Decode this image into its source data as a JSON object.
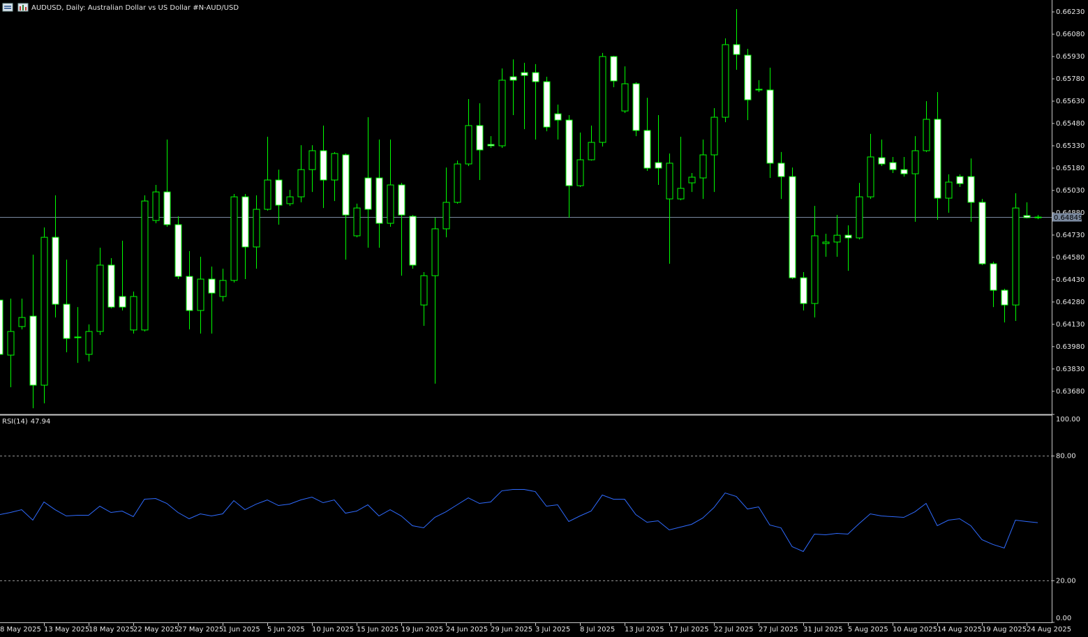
{
  "chart_data": [
    {
      "type": "candlestick",
      "title": "AUDUSD, Daily:  Australian Dollar vs US Dollar #N-AUD/USD",
      "categories": [
        "8 May 2025",
        null,
        null,
        null,
        "13 May 2025",
        null,
        null,
        null,
        "18 May 2025",
        null,
        null,
        null,
        "22 May 2025",
        null,
        null,
        null,
        "27 May 2025",
        null,
        null,
        null,
        "1 Jun 2025",
        null,
        null,
        null,
        "5 Jun 2025",
        null,
        null,
        null,
        "10 Jun 2025",
        null,
        null,
        null,
        "15 Jun 2025",
        null,
        null,
        null,
        "19 Jun 2025",
        null,
        null,
        null,
        "24 Jun 2025",
        null,
        null,
        null,
        "29 Jun 2025",
        null,
        null,
        null,
        "3 Jul 2025",
        null,
        null,
        null,
        "8 Jul 2025",
        null,
        null,
        null,
        "13 Jul 2025",
        null,
        null,
        null,
        "17 Jul 2025",
        null,
        null,
        null,
        "22 Jul 2025",
        null,
        null,
        null,
        "27 Jul 2025",
        null,
        null,
        null,
        "31 Jul 2025",
        null,
        null,
        null,
        "5 Aug 2025",
        null,
        null,
        null,
        "10 Aug 2025",
        null,
        null,
        null,
        "14 Aug 2025",
        null,
        null,
        null,
        "19 Aug 2025",
        null,
        null,
        null,
        "24 Aug 2025",
        null
      ],
      "open": [
        0.64293,
        0.63923,
        0.64115,
        0.64185,
        0.63721,
        0.64715,
        0.64265,
        0.64045,
        0.63928,
        0.64082,
        0.64528,
        0.64317,
        0.64092,
        0.64092,
        0.64828,
        0.6502,
        0.648,
        0.64452,
        0.64223,
        0.64434,
        0.64317,
        0.64425,
        0.64987,
        0.6465,
        0.64903,
        0.651,
        0.64941,
        0.64987,
        0.6517,
        0.65297,
        0.651,
        0.65269,
        0.64725,
        0.65114,
        0.65114,
        0.64809,
        0.65067,
        0.64856,
        0.6426,
        0.64457,
        0.64772,
        0.6495,
        0.65208,
        0.65466,
        0.65339,
        0.6533,
        0.65794,
        0.65822,
        0.65822,
        0.65761,
        0.65545,
        0.65503,
        0.65062,
        0.65236,
        0.65353,
        0.6593,
        0.65564,
        0.65747,
        0.65433,
        0.65217,
        0.64973,
        0.64973,
        0.65081,
        0.65114,
        0.65269,
        0.65522,
        0.6601,
        0.65939,
        0.6571,
        0.65705,
        0.65213,
        0.65123,
        0.64443,
        0.6427,
        0.64673,
        0.64683,
        0.64729,
        0.64711,
        0.64987,
        0.6525,
        0.65217,
        0.6517,
        0.65142,
        0.65297,
        0.65508,
        0.64978,
        0.65123,
        0.65123,
        0.6495,
        0.64537,
        0.64359,
        0.6426,
        0.64861,
        0.64851
      ],
      "high": [
        0.64317,
        0.64303,
        0.64303,
        0.64598,
        0.64781,
        0.64997,
        0.64565,
        0.64246,
        0.64129,
        0.64645,
        0.64575,
        0.64692,
        0.6435,
        0.64997,
        0.65067,
        0.65372,
        0.64856,
        0.64622,
        0.64584,
        0.64518,
        0.64504,
        0.65006,
        0.65006,
        0.64997,
        0.65391,
        0.6517,
        0.65034,
        0.65334,
        0.65334,
        0.65466,
        0.65288,
        0.65278,
        0.64941,
        0.65522,
        0.65372,
        0.65372,
        0.65081,
        0.64865,
        0.64481,
        0.64847,
        0.65184,
        0.65231,
        0.65644,
        0.65616,
        0.65395,
        0.6585,
        0.65911,
        0.65888,
        0.65879,
        0.65794,
        0.65607,
        0.65536,
        0.65419,
        0.65466,
        0.65954,
        0.65935,
        0.65864,
        0.65757,
        0.65653,
        0.65536,
        0.65278,
        0.65391,
        0.65147,
        0.65372,
        0.65583,
        0.66052,
        0.66249,
        0.65982,
        0.65771,
        0.65855,
        0.65288,
        0.65184,
        0.64481,
        0.64926,
        0.64739,
        0.64865,
        0.64795,
        0.65081,
        0.6541,
        0.65372,
        0.65255,
        0.65255,
        0.65395,
        0.6563,
        0.65691,
        0.65138,
        0.65138,
        0.65245,
        0.64973,
        0.64551,
        0.64369,
        0.65011,
        0.6495,
        0.64865
      ],
      "low": [
        0.63909,
        0.63707,
        0.64096,
        0.63566,
        0.63599,
        0.64176,
        0.63942,
        0.63871,
        0.63881,
        0.64059,
        0.64237,
        0.64223,
        0.64068,
        0.64082,
        0.64809,
        0.64786,
        0.64434,
        0.64096,
        0.64068,
        0.64068,
        0.64284,
        0.64411,
        0.64434,
        0.64504,
        0.64894,
        0.648,
        0.64926,
        0.6495,
        0.6502,
        0.64912,
        0.64959,
        0.64565,
        0.64715,
        0.64645,
        0.64645,
        0.64786,
        0.64457,
        0.64504,
        0.6412,
        0.63731,
        0.64715,
        0.64941,
        0.65194,
        0.651,
        0.65316,
        0.65316,
        0.65536,
        0.65442,
        0.65372,
        0.65428,
        0.65372,
        0.64847,
        0.65053,
        0.65231,
        0.65325,
        0.65724,
        0.6555,
        0.65395,
        0.65161,
        0.65067,
        0.64537,
        0.64964,
        0.6502,
        0.64973,
        0.6502,
        0.65489,
        0.65841,
        0.65503,
        0.65691,
        0.65114,
        0.64973,
        0.64434,
        0.64223,
        0.64176,
        0.64584,
        0.64584,
        0.6449,
        0.64701,
        0.64973,
        0.65194,
        0.65147,
        0.65123,
        0.64819,
        0.65288,
        0.64833,
        0.6488,
        0.65053,
        0.64819,
        0.64528,
        0.64246,
        0.64143,
        0.64153,
        0.64842,
        0.64837
      ],
      "close": [
        0.63928,
        0.64082,
        0.64176,
        0.63721,
        0.64715,
        0.64265,
        0.64035,
        0.6404,
        0.64082,
        0.64528,
        0.64246,
        0.64246,
        0.64317,
        0.64959,
        0.6502,
        0.648,
        0.64452,
        0.64223,
        0.64434,
        0.6434,
        0.64425,
        0.64987,
        0.6465,
        0.64903,
        0.651,
        0.64931,
        0.64987,
        0.6517,
        0.65297,
        0.651,
        0.65278,
        0.64865,
        0.64912,
        0.64903,
        0.64809,
        0.65067,
        0.64865,
        0.64528,
        0.64457,
        0.64772,
        0.6495,
        0.65208,
        0.65466,
        0.65302,
        0.6533,
        0.65771,
        0.65771,
        0.65803,
        0.65761,
        0.65456,
        0.65503,
        0.65062,
        0.65236,
        0.65353,
        0.6593,
        0.65766,
        0.65747,
        0.65433,
        0.6518,
        0.6518,
        0.65213,
        0.65044,
        0.65119,
        0.65269,
        0.65522,
        0.6601,
        0.65944,
        0.65639,
        0.65705,
        0.65213,
        0.65123,
        0.64443,
        0.6427,
        0.64725,
        0.64683,
        0.64729,
        0.64711,
        0.64987,
        0.65255,
        0.65208,
        0.6517,
        0.65142,
        0.65297,
        0.65508,
        0.64978,
        0.65086,
        0.65076,
        0.6495,
        0.64537,
        0.64359,
        0.6426,
        0.64912,
        0.64847,
        0.64849
      ],
      "color": "#00ff00",
      "up_fill": "#000000",
      "down_fill": "#ffffff",
      "last_price": 0.64849,
      "last_price_color": "#7b8aa0",
      "ylim": [
        0.63529,
        0.6631
      ],
      "yticks": [
        {
          "value": 0.6623,
          "label": "0.66230"
        },
        {
          "value": 0.6608,
          "label": "0.66080"
        },
        {
          "value": 0.6593,
          "label": "0.65930"
        },
        {
          "value": 0.6578,
          "label": "0.65780"
        },
        {
          "value": 0.6563,
          "label": "0.65630"
        },
        {
          "value": 0.6548,
          "label": "0.65480"
        },
        {
          "value": 0.6533,
          "label": "0.65330"
        },
        {
          "value": 0.6518,
          "label": "0.65180"
        },
        {
          "value": 0.6503,
          "label": "0.65030"
        },
        {
          "value": 0.6488,
          "label": "0.64880"
        },
        {
          "value": 0.6473,
          "label": "0.64730"
        },
        {
          "value": 0.6458,
          "label": "0.64580"
        },
        {
          "value": 0.6443,
          "label": "0.64430"
        },
        {
          "value": 0.6428,
          "label": "0.64280"
        },
        {
          "value": 0.6413,
          "label": "0.64130"
        },
        {
          "value": 0.6398,
          "label": "0.63980"
        },
        {
          "value": 0.6383,
          "label": "0.63830"
        },
        {
          "value": 0.6368,
          "label": "0.63680"
        }
      ]
    },
    {
      "type": "line",
      "title": "RSI(14)",
      "series": [
        {
          "color": "#2f6bff",
          "values": [
            51.84,
            52.85,
            54.19,
            49.16,
            57.88,
            54.19,
            51.17,
            51.51,
            51.51,
            55.87,
            52.85,
            53.52,
            50.84,
            59.22,
            59.55,
            57.21,
            52.85,
            49.83,
            52.18,
            51.17,
            52.18,
            58.55,
            54.19,
            56.87,
            58.88,
            56.2,
            56.87,
            58.88,
            60.22,
            57.54,
            58.88,
            52.51,
            53.52,
            56.54,
            51.17,
            54.19,
            51.17,
            46.48,
            45.47,
            50.5,
            53.18,
            56.54,
            59.89,
            57.21,
            57.88,
            63.24,
            63.91,
            63.91,
            62.9,
            55.87,
            56.54,
            48.49,
            51.17,
            53.52,
            61.23,
            59.22,
            59.22,
            51.84,
            48.16,
            48.83,
            44.47,
            45.81,
            47.15,
            50.17,
            55.2,
            62.23,
            60.56,
            54.52,
            55.53,
            46.82,
            45.47,
            36.42,
            34.08,
            42.46,
            42.12,
            42.79,
            42.46,
            47.49,
            52.18,
            51.17,
            50.84,
            50.5,
            53.18,
            57.21,
            46.48,
            49.16,
            49.83,
            46.48,
            39.78,
            37.43,
            35.75,
            49.16,
            48.49,
            47.94
          ]
        }
      ],
      "ylim": [
        0,
        100
      ],
      "yticks": [
        {
          "value": 100,
          "label": "100.00"
        },
        {
          "value": 80,
          "label": "80.00"
        },
        {
          "value": 20,
          "label": "20.00"
        },
        {
          "value": 0,
          "label": "0.00"
        }
      ]
    }
  ]
}
